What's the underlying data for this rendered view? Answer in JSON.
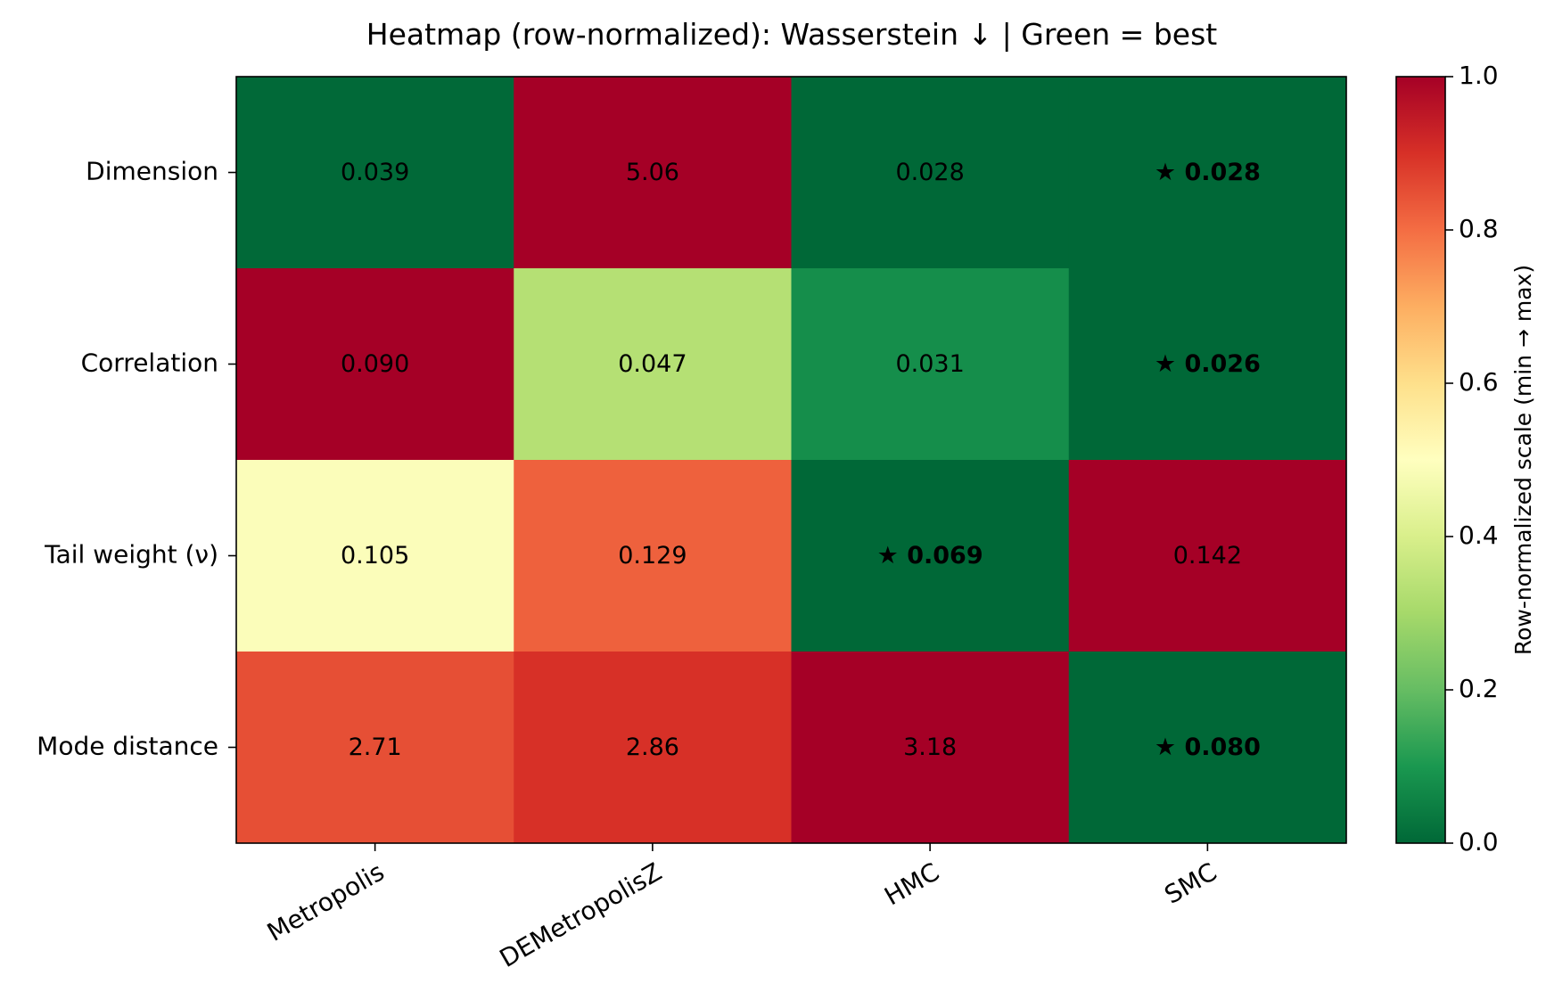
{
  "chart_data": {
    "type": "heatmap",
    "title": "Heatmap (row-normalized): Wasserstein ↓  |  Green = best",
    "rows": [
      "Dimension",
      "Correlation",
      "Tail weight (ν)",
      "Mode distance"
    ],
    "columns": [
      "Metropolis",
      "DEMetropolisZ",
      "HMC",
      "SMC"
    ],
    "cells": [
      [
        {
          "value": 0.039,
          "label": "0.039",
          "norm": 0.002,
          "best": false
        },
        {
          "value": 5.06,
          "label": "5.06",
          "norm": 1.0,
          "best": false
        },
        {
          "value": 0.028,
          "label": "0.028",
          "norm": 0.0,
          "best": false
        },
        {
          "value": 0.028,
          "label": "★ 0.028",
          "norm": 0.0,
          "best": true
        }
      ],
      [
        {
          "value": 0.09,
          "label": "0.090",
          "norm": 1.0,
          "best": false
        },
        {
          "value": 0.047,
          "label": "0.047",
          "norm": 0.33,
          "best": false
        },
        {
          "value": 0.031,
          "label": "0.031",
          "norm": 0.08,
          "best": false
        },
        {
          "value": 0.026,
          "label": "★ 0.026",
          "norm": 0.0,
          "best": true
        }
      ],
      [
        {
          "value": 0.105,
          "label": "0.105",
          "norm": 0.49,
          "best": false
        },
        {
          "value": 0.129,
          "label": "0.129",
          "norm": 0.82,
          "best": false
        },
        {
          "value": 0.069,
          "label": "★ 0.069",
          "norm": 0.0,
          "best": true
        },
        {
          "value": 0.142,
          "label": "0.142",
          "norm": 1.0,
          "best": false
        }
      ],
      [
        {
          "value": 2.71,
          "label": "2.71",
          "norm": 0.85,
          "best": false
        },
        {
          "value": 2.86,
          "label": "2.86",
          "norm": 0.9,
          "best": false
        },
        {
          "value": 3.18,
          "label": "3.18",
          "norm": 1.0,
          "best": false
        },
        {
          "value": 0.08,
          "label": "★ 0.080",
          "norm": 0.0,
          "best": true
        }
      ]
    ],
    "colorbar": {
      "label": "Row-normalized scale (min → max)",
      "range": [
        0.0,
        1.0
      ],
      "ticks": [
        "0.0",
        "0.2",
        "0.4",
        "0.6",
        "0.8",
        "1.0"
      ],
      "colormap": "RdYlGn_r",
      "stops": [
        "#006837",
        "#1a9850",
        "#66bd63",
        "#a6d96a",
        "#d9ef8b",
        "#ffffbf",
        "#fee08b",
        "#fdae61",
        "#f46d43",
        "#d73027",
        "#a50026"
      ]
    }
  }
}
